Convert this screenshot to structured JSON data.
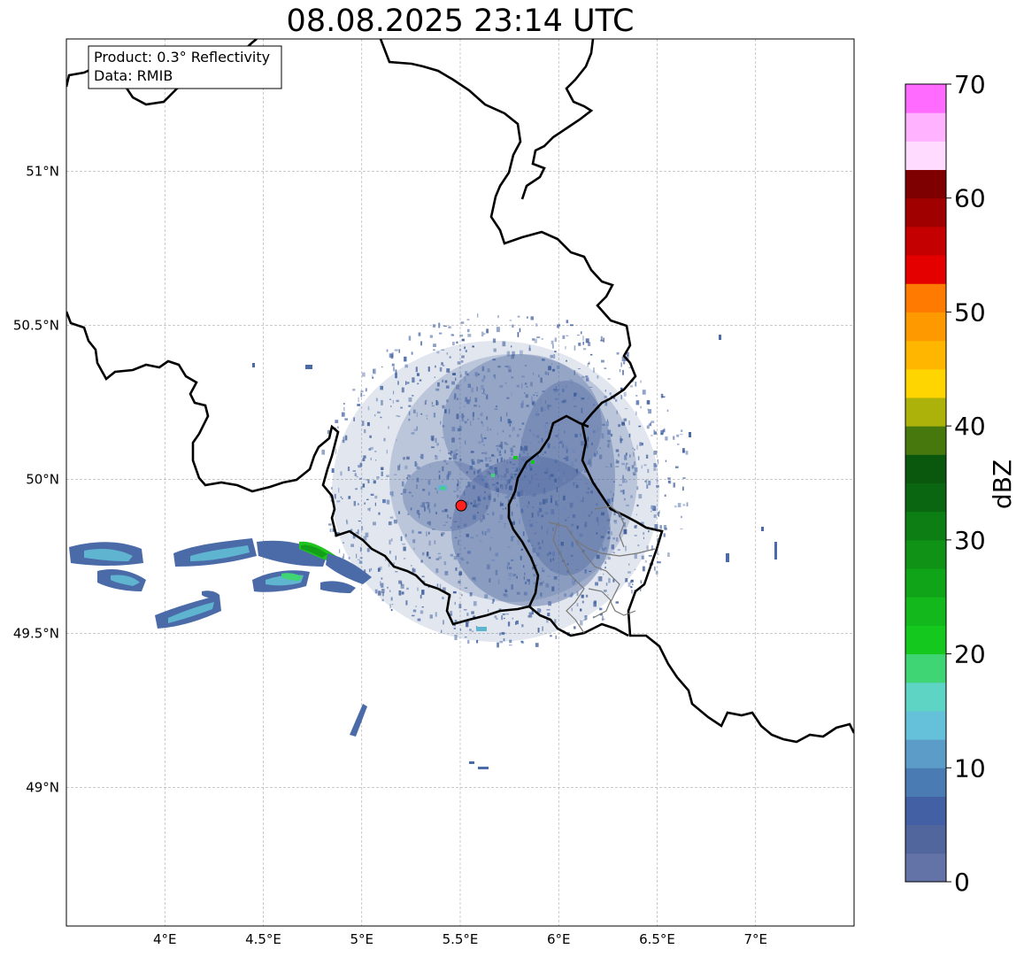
{
  "title": "08.08.2025 23:14 UTC",
  "info_box": {
    "line1": "Product: 0.3° Reflectivity",
    "line2": "Data: RMIB"
  },
  "map": {
    "lon_range": [
      3.5,
      7.5
    ],
    "lat_range": [
      48.55,
      51.43
    ],
    "lon_ticks": [
      {
        "value": 4.0,
        "label": "4°E"
      },
      {
        "value": 4.5,
        "label": "4.5°E"
      },
      {
        "value": 5.0,
        "label": "5°E"
      },
      {
        "value": 5.5,
        "label": "5.5°E"
      },
      {
        "value": 6.0,
        "label": "6°E"
      },
      {
        "value": 6.5,
        "label": "6.5°E"
      },
      {
        "value": 7.0,
        "label": "7°E"
      }
    ],
    "lat_ticks": [
      {
        "value": 49.0,
        "label": "49°N"
      },
      {
        "value": 49.5,
        "label": "49.5°N"
      },
      {
        "value": 50.0,
        "label": "50°N"
      },
      {
        "value": 50.5,
        "label": "50.5°N"
      },
      {
        "value": 51.0,
        "label": "51°N"
      }
    ],
    "grid": true,
    "radar_site": {
      "lon": 5.505,
      "lat": 49.915,
      "color": "#ff2020"
    }
  },
  "colorbar": {
    "unit": "dBZ",
    "min": 0,
    "max": 70,
    "step": 2.5,
    "ticks": [
      {
        "value": 0,
        "label": "0"
      },
      {
        "value": 10,
        "label": "10"
      },
      {
        "value": 20,
        "label": "20"
      },
      {
        "value": 30,
        "label": "30"
      },
      {
        "value": 40,
        "label": "40"
      },
      {
        "value": 50,
        "label": "50"
      },
      {
        "value": 60,
        "label": "60"
      },
      {
        "value": 70,
        "label": "70"
      }
    ],
    "colors": [
      "#6373a8",
      "#52669e",
      "#4460a4",
      "#4b7bb3",
      "#5b9cc8",
      "#65c0da",
      "#5ed4c4",
      "#3fd474",
      "#14c81e",
      "#12b81c",
      "#10a418",
      "#0f9216",
      "#0d7e14",
      "#0b6612",
      "#0a580e",
      "#47780e",
      "#adb20a",
      "#fed500",
      "#feb600",
      "#fe9900",
      "#fe7a00",
      "#e50000",
      "#c40000",
      "#a10000",
      "#7f0000",
      "#ffdcff",
      "#ffb2ff",
      "#ff6aff",
      "#ef3aef"
    ]
  }
}
